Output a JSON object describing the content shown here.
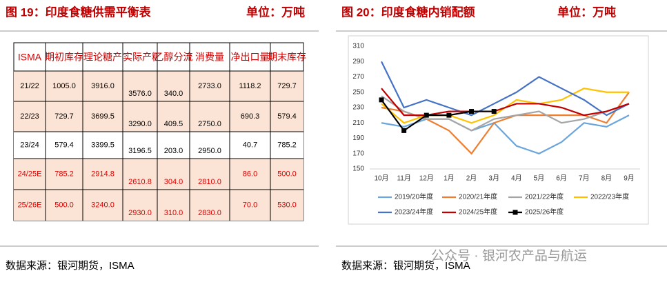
{
  "left": {
    "title": "图 19：印度食糖供需平衡表",
    "unit": "单位：万吨",
    "table": {
      "header": [
        "ISMA",
        "期初库存",
        "理论糖产",
        "实际产糖量",
        "乙醇分流",
        "消费量",
        "净出口量",
        "期末库存"
      ],
      "rows": [
        [
          "21/22",
          "1005.0",
          "3916.0",
          "3576.0",
          "340.0",
          "2733.0",
          "1118.2",
          "729.7"
        ],
        [
          "22/23",
          "729.7",
          "3699.5",
          "3290.0",
          "409.5",
          "2750.0",
          "690.3",
          "579.4"
        ],
        [
          "23/24",
          "579.4",
          "3399.5",
          "3196.5",
          "203.0",
          "2950.0",
          "40.7",
          "785.2"
        ],
        [
          "24/25E",
          "785.2",
          "2914.8",
          "2610.8",
          "304.0",
          "2810.0",
          "86.0",
          "500.0"
        ],
        [
          "25/26E",
          "500.0",
          "3240.0",
          "2930.0",
          "310.0",
          "2830.0",
          "70.0",
          "530.0"
        ]
      ]
    },
    "source": "数据来源：银河期货，ISMA"
  },
  "right": {
    "title": "图 20：印度食糖内销配额",
    "unit": "单位：万吨",
    "source": "数据来源：银河期货，ISMA",
    "watermark": "公众号 · 银河农产品与航运"
  },
  "chart_data": {
    "type": "line",
    "categories": [
      "10月",
      "11月",
      "12月",
      "1月",
      "2月",
      "3月",
      "4月",
      "5月",
      "6月",
      "7月",
      "8月",
      "9月"
    ],
    "ylim": [
      150,
      310
    ],
    "yticks": [
      150,
      170,
      190,
      210,
      230,
      250,
      270,
      290,
      310
    ],
    "series": [
      {
        "name": "2019/20年度",
        "color": "#6aa5dc",
        "values": [
          210,
          205,
          215,
          215,
          200,
          210,
          180,
          170,
          185,
          210,
          205,
          220
        ]
      },
      {
        "name": "2020/21年度",
        "color": "#ed7d31",
        "values": [
          230,
          225,
          215,
          200,
          170,
          210,
          220,
          220,
          220,
          220,
          210,
          250
        ]
      },
      {
        "name": "2021/22年度",
        "color": "#a5a5a5",
        "values": [
          245,
          225,
          215,
          215,
          200,
          215,
          220,
          225,
          210,
          215,
          225,
          235
        ]
      },
      {
        "name": "2022/23年度",
        "color": "#ffc000",
        "values": [
          235,
          210,
          220,
          220,
          210,
          220,
          240,
          235,
          240,
          255,
          250,
          250
        ]
      },
      {
        "name": "2023/24年度",
        "color": "#4472c4",
        "values": [
          290,
          230,
          240,
          230,
          220,
          235,
          250,
          270,
          255,
          240,
          220,
          235
        ]
      },
      {
        "name": "2024/25年度",
        "color": "#c00000",
        "values": [
          255,
          220,
          220,
          225,
          225,
          225,
          235,
          235,
          230,
          220,
          225,
          235
        ]
      },
      {
        "name": "2025/26年度",
        "color": "#000000",
        "marker": true,
        "values": [
          240,
          200,
          220,
          220,
          225,
          225,
          null,
          null,
          null,
          null,
          null,
          null
        ]
      }
    ]
  }
}
